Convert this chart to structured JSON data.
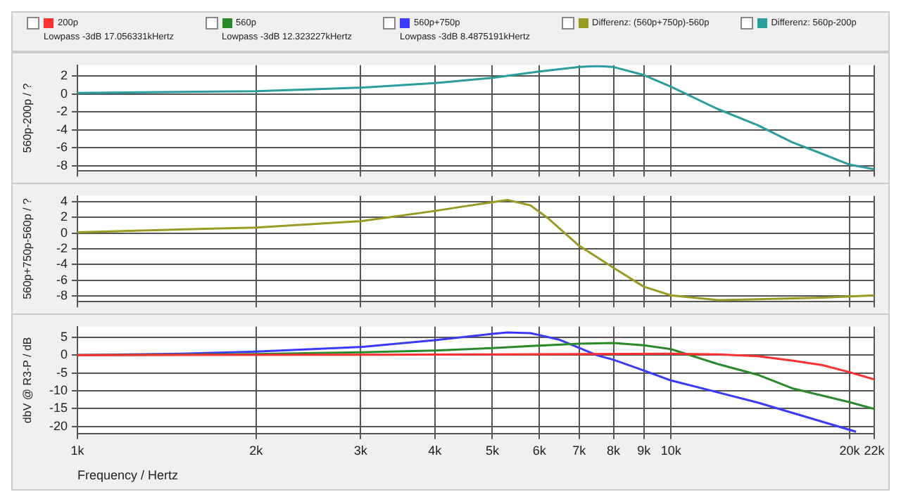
{
  "chart_data": [
    {
      "type": "line",
      "ylabel": "560p-200p / ?",
      "legend": "top",
      "grid": true,
      "log": "x",
      "tick_labels": "y",
      "xlim": [
        1000,
        22000
      ],
      "xticks": [
        {
          "value": 1000,
          "label": null
        },
        {
          "value": 2000,
          "label": null
        },
        {
          "value": 3000,
          "label": null
        },
        {
          "value": 4000,
          "label": null
        },
        {
          "value": 5000,
          "label": null
        },
        {
          "value": 6000,
          "label": null
        },
        {
          "value": 7000,
          "label": null
        },
        {
          "value": 8000,
          "label": null
        },
        {
          "value": 9000,
          "label": null
        },
        {
          "value": 10000,
          "label": null
        },
        {
          "value": 20000,
          "label": null
        },
        {
          "value": 22000,
          "label": null
        }
      ],
      "ylim": [
        -8.6,
        3.2
      ],
      "yticks": [
        -8,
        -6,
        -4,
        -2,
        0,
        2
      ],
      "x": [
        1000,
        2000,
        3000,
        4000,
        5000,
        6000,
        7000,
        7500,
        8000,
        9000,
        10000,
        12000,
        14000,
        16000,
        18000,
        20000,
        22000
      ],
      "series": [
        {
          "name": "Differenz: 560p-200p",
          "color": "#2a9d9d",
          "values": [
            0.1,
            0.3,
            0.7,
            1.2,
            1.8,
            2.5,
            3.0,
            3.1,
            3.0,
            2.1,
            0.8,
            -1.7,
            -3.5,
            -5.4,
            -6.7,
            -7.9,
            -8.4
          ]
        }
      ]
    },
    {
      "type": "line",
      "ylabel": "560p+750p-560p / ?",
      "legend": "top",
      "grid": true,
      "log": "x",
      "tick_labels": "y",
      "xlim": [
        1000,
        22000
      ],
      "xticks": [
        {
          "value": 1000,
          "label": null
        },
        {
          "value": 2000,
          "label": null
        },
        {
          "value": 3000,
          "label": null
        },
        {
          "value": 4000,
          "label": null
        },
        {
          "value": 5000,
          "label": null
        },
        {
          "value": 6000,
          "label": null
        },
        {
          "value": 7000,
          "label": null
        },
        {
          "value": 8000,
          "label": null
        },
        {
          "value": 9000,
          "label": null
        },
        {
          "value": 10000,
          "label": null
        },
        {
          "value": 20000,
          "label": null
        },
        {
          "value": 22000,
          "label": null
        }
      ],
      "ylim": [
        -8.7,
        4.7
      ],
      "yticks": [
        -8,
        -6,
        -4,
        -2,
        0,
        2,
        4
      ],
      "x": [
        1000,
        2000,
        3000,
        4000,
        4500,
        5000,
        5300,
        5800,
        6200,
        7000,
        8000,
        9000,
        10000,
        12000,
        14000,
        18000,
        22000
      ],
      "series": [
        {
          "name": "Differenz: (560p+750p)-560p",
          "color": "#9a9a22",
          "values": [
            0.1,
            0.7,
            1.5,
            2.8,
            3.4,
            3.9,
            4.2,
            3.5,
            1.9,
            -1.6,
            -4.4,
            -6.8,
            -7.9,
            -8.5,
            -8.4,
            -8.2,
            -7.9
          ]
        }
      ]
    },
    {
      "type": "line",
      "ylabel": "dbV @ R3-P / dB",
      "xlabel": "Frequency / Hertz",
      "legend": "top",
      "grid": true,
      "log": "x",
      "xlim": [
        1000,
        22000
      ],
      "xticks": [
        {
          "value": 1000,
          "label": "1k"
        },
        {
          "value": 2000,
          "label": "2k"
        },
        {
          "value": 3000,
          "label": "3k"
        },
        {
          "value": 4000,
          "label": "4k"
        },
        {
          "value": 5000,
          "label": "5k"
        },
        {
          "value": 6000,
          "label": "6k"
        },
        {
          "value": 7000,
          "label": "7k"
        },
        {
          "value": 8000,
          "label": "8k"
        },
        {
          "value": 9000,
          "label": "9k"
        },
        {
          "value": 10000,
          "label": "10k"
        },
        {
          "value": 20000,
          "label": "20k"
        },
        {
          "value": 22000,
          "label": "22k"
        }
      ],
      "ylim": [
        -22,
        8
      ],
      "yticks": [
        -20,
        -15,
        -10,
        -5,
        0,
        5
      ],
      "annotations": [
        "Lowpass -3dB 17.056331kHertz",
        "Lowpass -3dB 12.323227kHertz",
        "Lowpass -3dB 8.4875191kHertz"
      ],
      "series": [
        {
          "name": "200p",
          "color": "#ff3030",
          "x": [
            1000,
            5000,
            10000,
            12000,
            14000,
            16000,
            18000,
            20000,
            22000
          ],
          "values": [
            0,
            0.2,
            0.4,
            0.2,
            -0.3,
            -1.5,
            -2.8,
            -4.8,
            -6.8
          ]
        },
        {
          "name": "560p",
          "color": "#2a8a2a",
          "x": [
            1000,
            2000,
            3000,
            4000,
            5000,
            6000,
            7000,
            8000,
            9000,
            10000,
            12000,
            14000,
            16000,
            20000,
            22000
          ],
          "values": [
            0,
            0.3,
            0.8,
            1.3,
            2.0,
            2.7,
            3.2,
            3.4,
            2.8,
            1.7,
            -2.5,
            -5.5,
            -9.3,
            -13.2,
            -15.1
          ]
        },
        {
          "name": "560p+750p",
          "color": "#3a3aff",
          "x": [
            1000,
            1500,
            2000,
            3000,
            4000,
            5000,
            5300,
            5800,
            6500,
            7500,
            8000,
            9000,
            10000,
            14000,
            20500
          ],
          "values": [
            0,
            0.4,
            1.0,
            2.3,
            4.2,
            6.0,
            6.4,
            6.2,
            4.3,
            0,
            -1.3,
            -4.3,
            -7.1,
            -13.3,
            -21.5
          ]
        }
      ]
    }
  ]
}
